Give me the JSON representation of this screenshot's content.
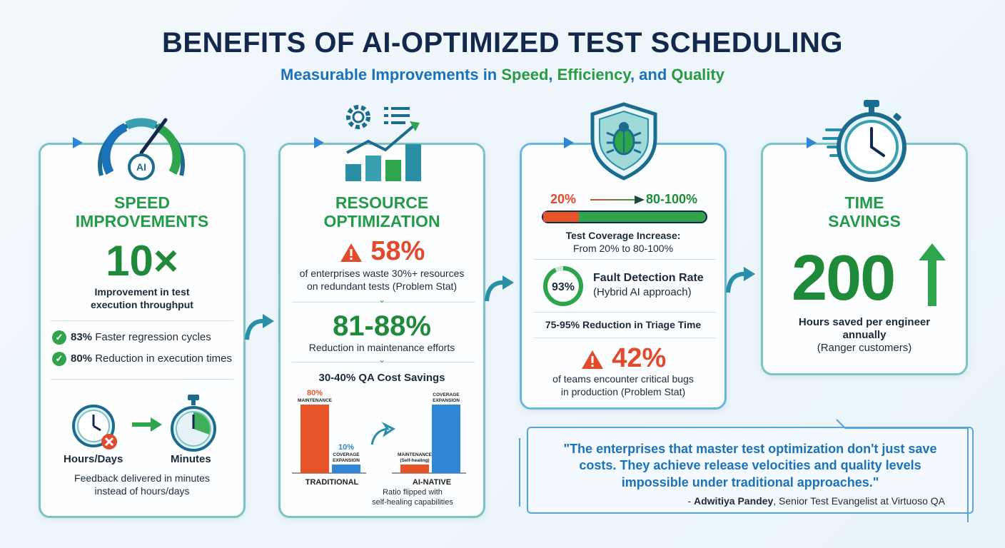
{
  "header": {
    "title": "BENEFITS OF AI-OPTIMIZED TEST SCHEDULING",
    "subtitle_part1": "Measurable Improvements in ",
    "subtitle_part2": "Speed",
    "subtitle_part3": ", ",
    "subtitle_part4": "Efficiency",
    "subtitle_part5": ", and ",
    "subtitle_part6": "Quality"
  },
  "speed": {
    "heading_line1": "SPEED",
    "heading_line2": "IMPROVEMENTS",
    "gauge_badge": "AI",
    "big_value": "10×",
    "big_caption_line1": "Improvement in test",
    "big_caption_line2": "execution throughput",
    "items": [
      {
        "value": "83%",
        "text": " Faster regression cycles"
      },
      {
        "value": "80%",
        "text": " Reduction in execution times"
      }
    ],
    "from_label": "Hours/Days",
    "to_label": "Minutes",
    "footer_line1": "Feedback delivered in minutes",
    "footer_line2": "instead of hours/days"
  },
  "resource": {
    "heading_line1": "RESOURCE",
    "heading_line2": "OPTIMIZATION",
    "stat1_value": "58%",
    "stat1_line1": "of enterprises waste 30%+ resources",
    "stat1_line2": "on redundant tests (Problem Stat)",
    "stat2_value": "81-88%",
    "stat2_caption": "Reduction in maintenance efforts",
    "stat3": "30-40% QA Cost Savings",
    "chart_data": {
      "type": "bar",
      "groups": [
        {
          "name": "TRADITIONAL",
          "bars": [
            {
              "label": "MAINTENANCE",
              "value": 80,
              "value_label": "80%",
              "color": "#e8542a"
            },
            {
              "label": "COVERAGE EXPANSION",
              "value": 10,
              "value_label": "10%",
              "color": "#2f86d6"
            }
          ]
        },
        {
          "name": "AI-NATIVE",
          "bars": [
            {
              "label": "MAINTENANCE (Self-healing)",
              "value": 10,
              "value_label": "",
              "color": "#e8542a"
            },
            {
              "label": "COVERAGE EXPANSION",
              "value": 80,
              "value_label": "",
              "color": "#2f86d6"
            }
          ]
        }
      ]
    },
    "chart_caption_line1": "Ratio flipped with",
    "chart_caption_line2": "self-healing capabilities"
  },
  "quality": {
    "coverage_from": "20%",
    "coverage_to": "80-100%",
    "coverage_fill_fraction": 0.22,
    "coverage_caption_line1": "Test Coverage Increase:",
    "coverage_caption_line2": "From 20% to 80-100%",
    "fault_value": "93%",
    "fault_value_fraction": 0.93,
    "fault_title": "Fault Detection Rate",
    "fault_sub": "(Hybrid AI approach)",
    "triage_value": "75-95%",
    "triage_text": " Reduction in Triage Time",
    "stat_value": "42%",
    "stat_line1": "of teams encounter critical bugs",
    "stat_line2": "in production (Problem Stat)"
  },
  "time": {
    "heading_line1": "TIME",
    "heading_line2": "SAVINGS",
    "big_value": "200",
    "caption_line1": "Hours saved per engineer",
    "caption_line2": "annually",
    "caption_line3": "(Ranger customers)"
  },
  "quote": {
    "line1": "\"The enterprises that master test optimization don't just save",
    "line2": "costs. They achieve release velocities and quality levels",
    "line3": "impossible under traditional approaches.\"",
    "author_prefix": "- ",
    "author_name": "Adwitiya Pandey",
    "author_role": ", Senior Test Evangelist at Virtuoso QA"
  },
  "colors": {
    "navy": "#13284d",
    "green": "#249b4a",
    "blue": "#1c72b8",
    "red": "#e24a2d",
    "teal_border": "#7cc4c2"
  }
}
